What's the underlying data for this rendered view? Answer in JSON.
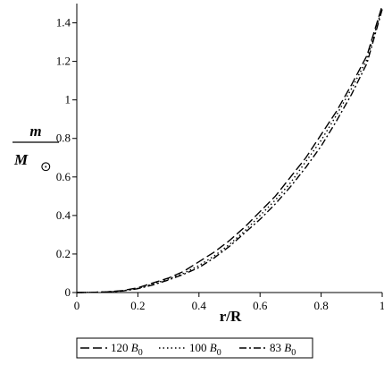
{
  "chart_data": {
    "type": "line",
    "xlabel": "r/R",
    "ylabel": {
      "numerator": "m",
      "denominator_main": "M",
      "denominator_sub": "⊙"
    },
    "xlim": [
      0,
      1
    ],
    "ylim": [
      0,
      1.5
    ],
    "x_ticks": [
      "0",
      "0.2",
      "0.4",
      "0.6",
      "0.8",
      "1"
    ],
    "y_ticks": [
      "0",
      "0.2",
      "0.4",
      "0.6",
      "0.8",
      "1",
      "1.2",
      "1.4"
    ],
    "grid": false,
    "legend_position": "bottom",
    "x": [
      0,
      0.05,
      0.1,
      0.15,
      0.2,
      0.25,
      0.3,
      0.35,
      0.4,
      0.45,
      0.5,
      0.55,
      0.6,
      0.65,
      0.7,
      0.75,
      0.8,
      0.85,
      0.9,
      0.95,
      1.0
    ],
    "series": [
      {
        "name": "120 B₀",
        "label_main": "120",
        "label_var": "B",
        "label_sub": "0",
        "dash": "long-dash",
        "values": [
          0,
          0.001,
          0.004,
          0.01,
          0.025,
          0.05,
          0.075,
          0.11,
          0.16,
          0.21,
          0.27,
          0.34,
          0.42,
          0.5,
          0.6,
          0.7,
          0.82,
          0.94,
          1.08,
          1.23,
          1.49
        ]
      },
      {
        "name": "100 B₀",
        "label_main": "100",
        "label_var": "B",
        "label_sub": "0",
        "dash": "dotted",
        "values": [
          0,
          0.001,
          0.003,
          0.009,
          0.022,
          0.045,
          0.07,
          0.1,
          0.14,
          0.19,
          0.25,
          0.32,
          0.4,
          0.48,
          0.57,
          0.68,
          0.79,
          0.92,
          1.06,
          1.21,
          1.48
        ]
      },
      {
        "name": "83 B₀",
        "label_main": "83",
        "label_var": "B",
        "label_sub": "0",
        "dash": "dash-dot",
        "values": [
          0,
          0.001,
          0.003,
          0.008,
          0.02,
          0.04,
          0.065,
          0.095,
          0.13,
          0.18,
          0.24,
          0.31,
          0.38,
          0.46,
          0.55,
          0.65,
          0.76,
          0.89,
          1.03,
          1.19,
          1.47
        ]
      }
    ]
  }
}
